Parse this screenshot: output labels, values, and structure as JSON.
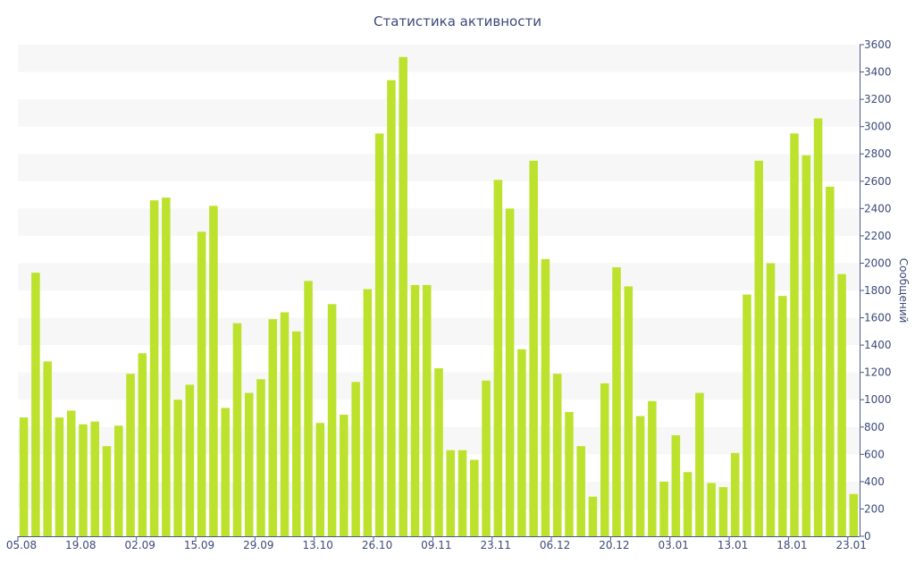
{
  "chart_data": {
    "type": "bar",
    "title": "Статистика активности",
    "xlabel": "",
    "ylabel": "Сообщений",
    "ylim": [
      0,
      3600
    ],
    "y_ticks": [
      0,
      200,
      400,
      600,
      800,
      1000,
      1200,
      1400,
      1600,
      1800,
      2000,
      2200,
      2400,
      2600,
      2800,
      3000,
      3200,
      3400,
      3600
    ],
    "y_axis_side": "right",
    "x_tick_labels": [
      "05.08",
      "19.08",
      "02.09",
      "15.09",
      "29.09",
      "13.10",
      "26.10",
      "09.11",
      "23.11",
      "06.12",
      "20.12",
      "03.01",
      "13.01",
      "18.01",
      "23.01"
    ],
    "x_tick_positions": [
      0,
      5,
      10,
      15,
      20,
      25,
      30,
      35,
      40,
      45,
      50,
      55,
      60,
      65,
      70
    ],
    "grid": "alternating horizontal bands",
    "legend": "none",
    "values": [
      870,
      1930,
      1280,
      870,
      920,
      820,
      840,
      660,
      810,
      1190,
      1340,
      2460,
      2480,
      1000,
      1110,
      2230,
      2420,
      940,
      1560,
      1050,
      1150,
      1590,
      1640,
      1500,
      1870,
      830,
      1700,
      890,
      1130,
      1810,
      2950,
      3340,
      3510,
      1840,
      1840,
      1230,
      630,
      630,
      560,
      1140,
      2610,
      2400,
      1370,
      2750,
      2030,
      1190,
      910,
      660,
      290,
      1120,
      1970,
      1830,
      880,
      990,
      400,
      740,
      470,
      1050,
      390,
      360,
      610,
      1770,
      2750,
      2000,
      1760,
      2950,
      2790,
      3060,
      2560,
      1920,
      310
    ],
    "colors": {
      "bar": "#bde22e",
      "band": "#f7f7f7",
      "axis": "#4a5a8c",
      "text": "#3c4a7a"
    }
  }
}
